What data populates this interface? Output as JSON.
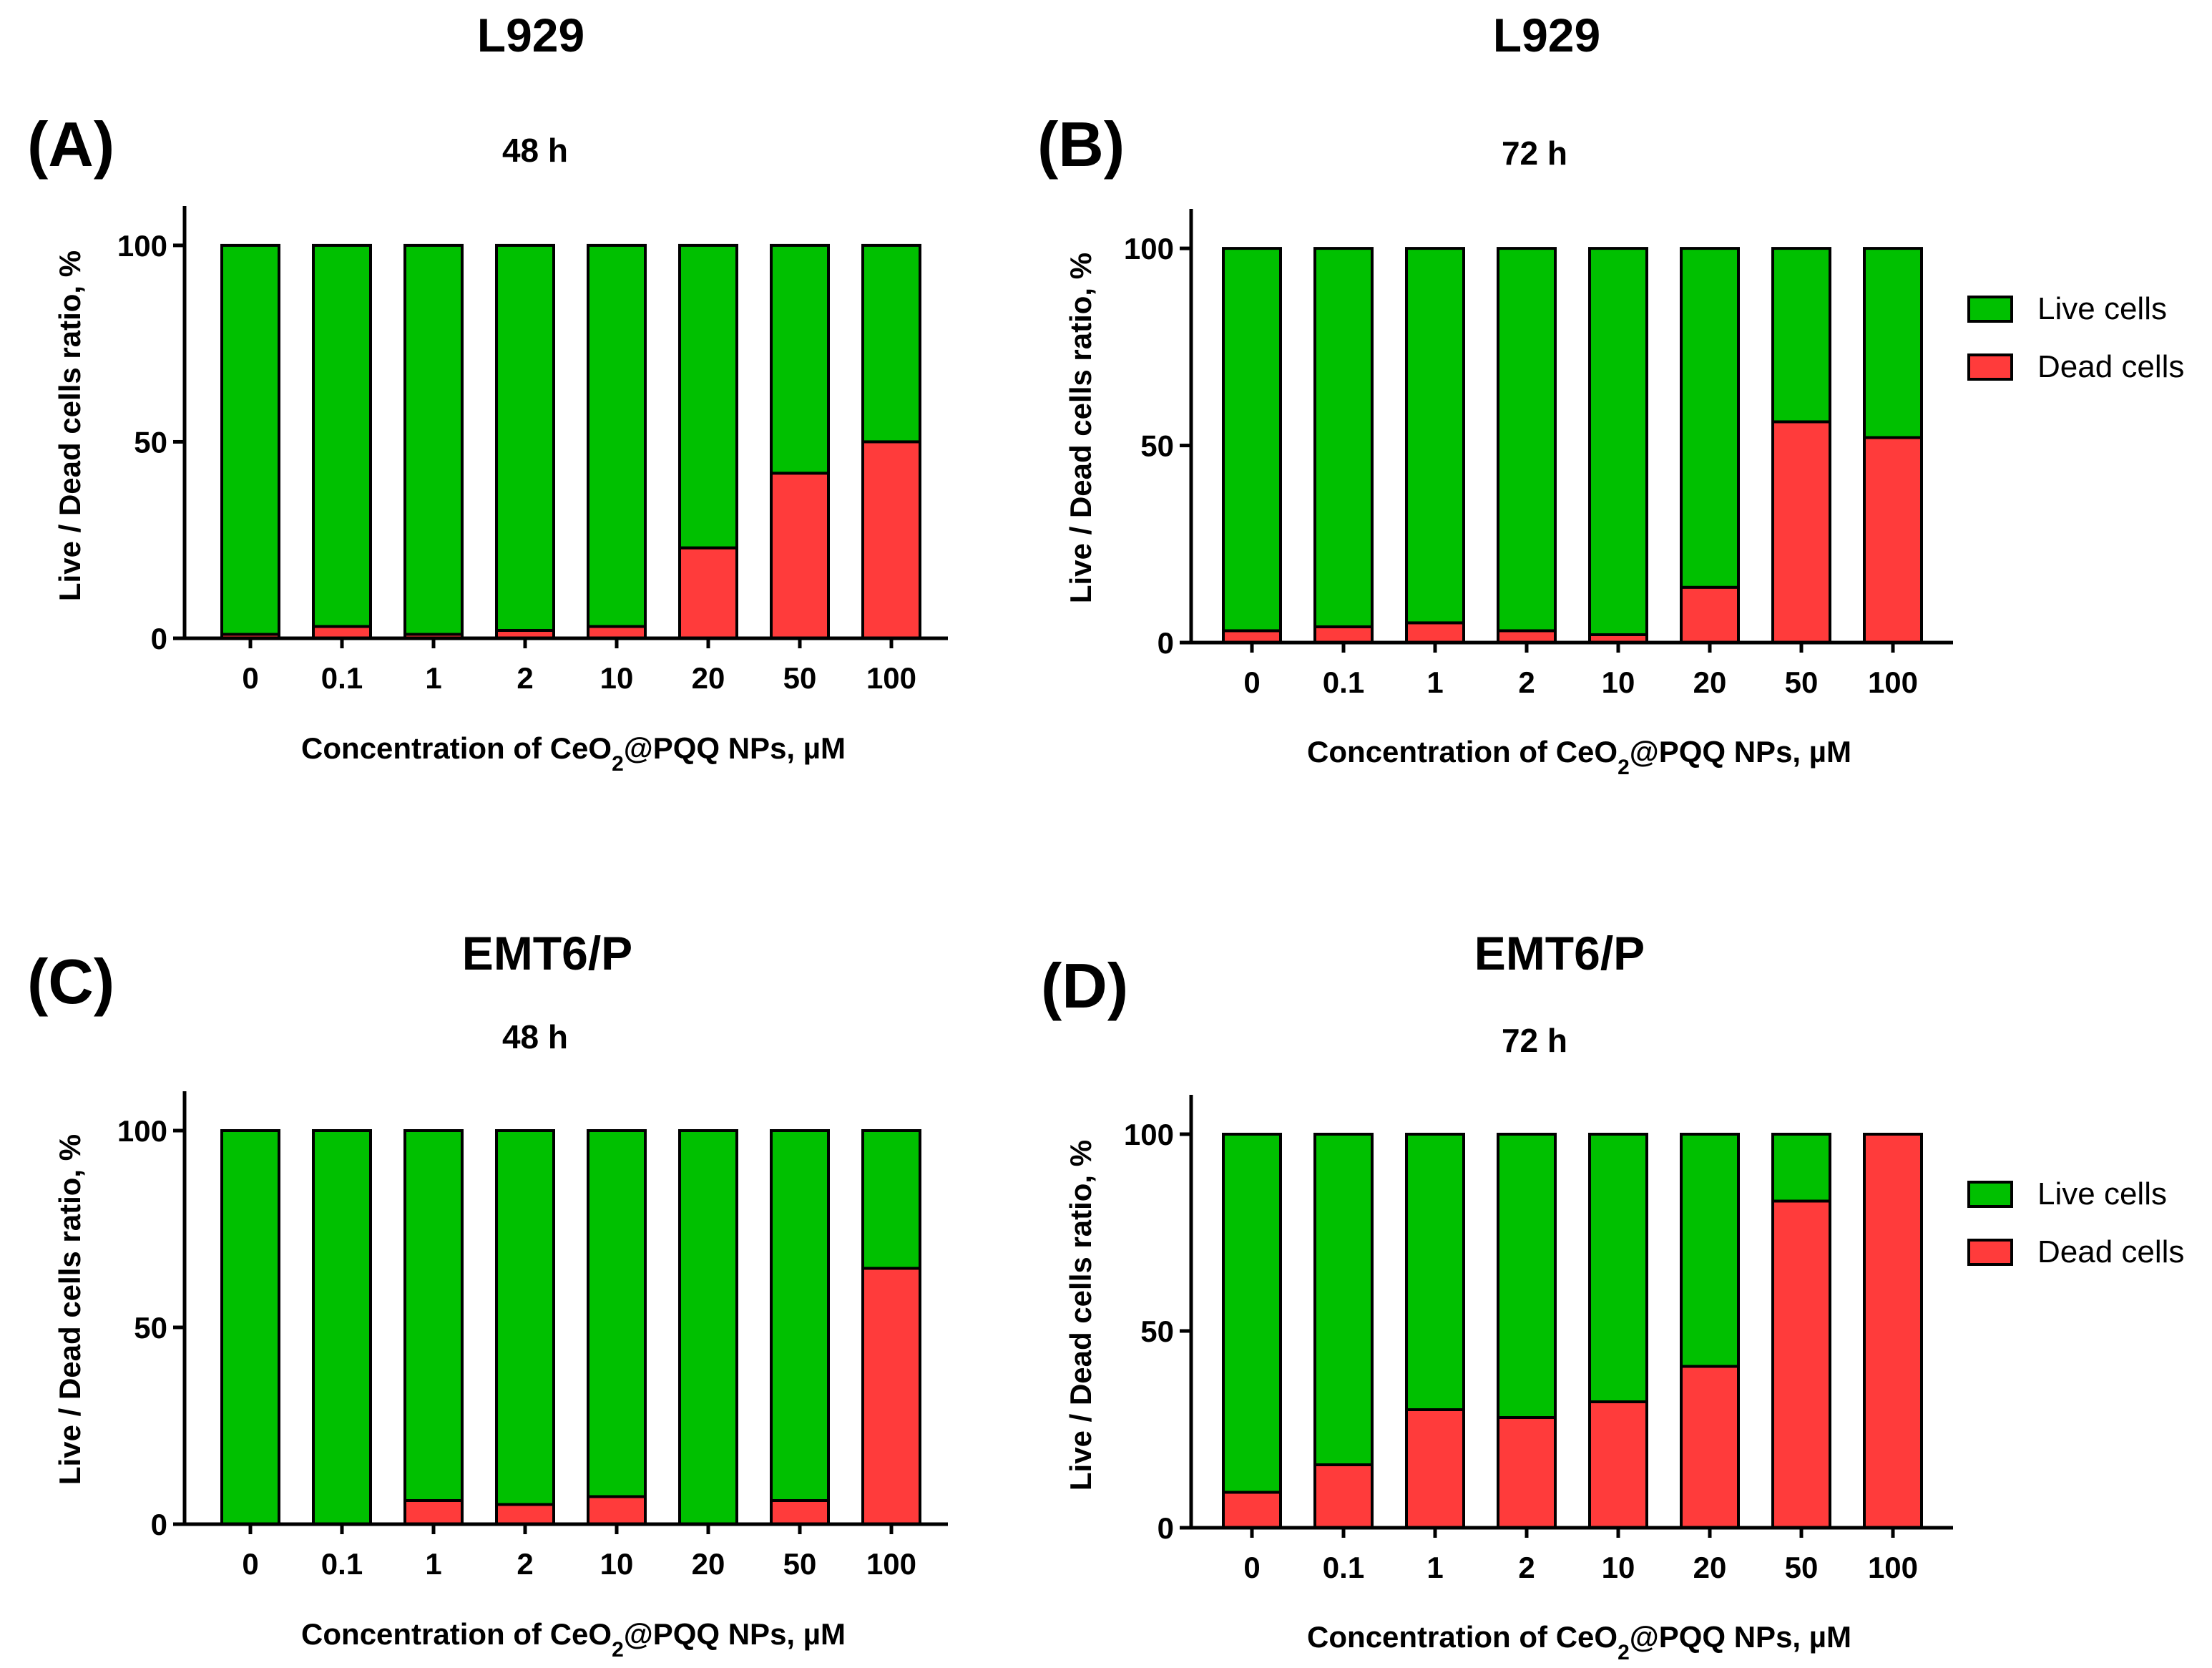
{
  "colors": {
    "live": "#00c000",
    "dead": "#ff3b3b",
    "axis": "#000000"
  },
  "xlabel_parts": {
    "prefix": "Concentration of CeO",
    "subscript": "2",
    "suffix": "@PQQ NPs, µM"
  },
  "ylabel": "Live / Dead cells ratio, %",
  "legend": {
    "live": "Live cells",
    "dead": "Dead cells"
  },
  "chart_data": [
    {
      "type": "bar",
      "stacked": true,
      "panel": "(A)",
      "title": "L929",
      "subtitle": "48 h",
      "categories": [
        "0",
        "0.1",
        "1",
        "2",
        "10",
        "20",
        "50",
        "100"
      ],
      "series": [
        {
          "name": "Dead cells",
          "values": [
            1,
            3,
            1,
            2,
            3,
            23,
            42,
            50
          ]
        },
        {
          "name": "Live cells",
          "values": [
            99,
            97,
            99,
            98,
            97,
            77,
            58,
            50
          ]
        }
      ],
      "xlabel": "Concentration of CeO2@PQQ NPs, µM",
      "ylabel": "Live / Dead cells ratio, %",
      "ylim": [
        0,
        110
      ],
      "yticks": [
        0,
        50,
        100
      ],
      "legend": false
    },
    {
      "type": "bar",
      "stacked": true,
      "panel": "(B)",
      "title": "L929",
      "subtitle": "72 h",
      "categories": [
        "0",
        "0.1",
        "1",
        "2",
        "10",
        "20",
        "50",
        "100"
      ],
      "series": [
        {
          "name": "Dead cells",
          "values": [
            3,
            4,
            5,
            3,
            2,
            14,
            56,
            52
          ]
        },
        {
          "name": "Live cells",
          "values": [
            97,
            96,
            95,
            97,
            98,
            86,
            44,
            48
          ]
        }
      ],
      "xlabel": "Concentration of CeO2@PQQ NPs, µM",
      "ylabel": "Live / Dead cells ratio, %",
      "ylim": [
        0,
        110
      ],
      "yticks": [
        0,
        50,
        100
      ],
      "legend": true
    },
    {
      "type": "bar",
      "stacked": true,
      "panel": "(C)",
      "title": "EMT6/P",
      "subtitle": "48 h",
      "categories": [
        "0",
        "0.1",
        "1",
        "2",
        "10",
        "20",
        "50",
        "100"
      ],
      "series": [
        {
          "name": "Dead cells",
          "values": [
            0,
            0,
            6,
            5,
            7,
            0,
            6,
            65
          ]
        },
        {
          "name": "Live cells",
          "values": [
            100,
            100,
            94,
            95,
            93,
            100,
            94,
            35
          ]
        }
      ],
      "xlabel": "Concentration of CeO2@PQQ NPs, µM",
      "ylabel": "Live / Dead cells ratio, %",
      "ylim": [
        0,
        110
      ],
      "yticks": [
        0,
        50,
        100
      ],
      "legend": false
    },
    {
      "type": "bar",
      "stacked": true,
      "panel": "(D)",
      "title": "EMT6/P",
      "subtitle": "72 h",
      "categories": [
        "0",
        "0.1",
        "1",
        "2",
        "10",
        "20",
        "50",
        "100"
      ],
      "series": [
        {
          "name": "Dead cells",
          "values": [
            9,
            16,
            30,
            28,
            32,
            41,
            83,
            100
          ]
        },
        {
          "name": "Live cells",
          "values": [
            91,
            84,
            70,
            72,
            68,
            59,
            17,
            0
          ]
        }
      ],
      "xlabel": "Concentration of CeO2@PQQ NPs, µM",
      "ylabel": "Live / Dead cells ratio, %",
      "ylim": [
        0,
        110
      ],
      "yticks": [
        0,
        50,
        100
      ],
      "legend": true
    }
  ]
}
